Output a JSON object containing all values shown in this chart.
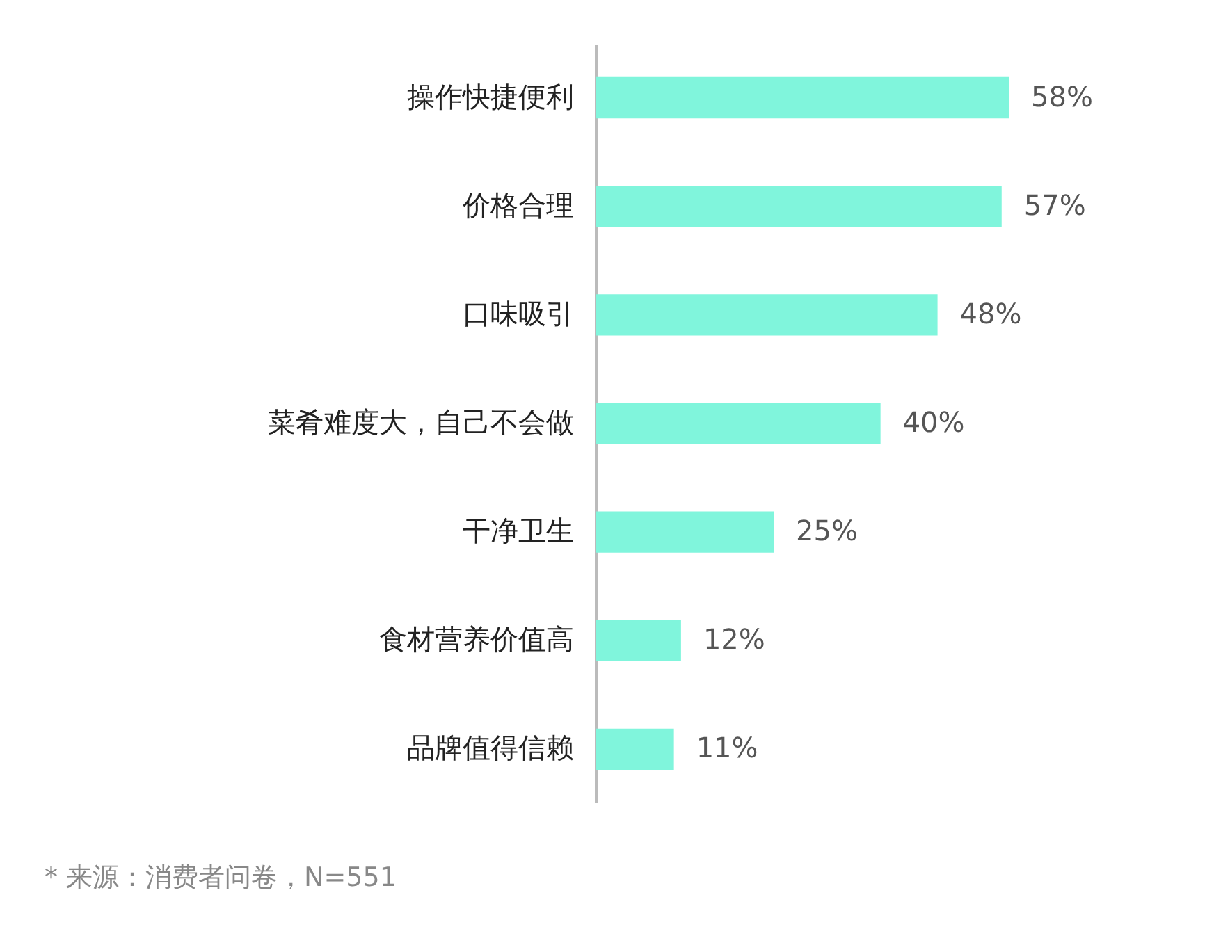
{
  "chart_data": {
    "type": "bar",
    "orientation": "horizontal",
    "categories": [
      "操作快捷便利",
      "价格合理",
      "口味吸引",
      "菜肴难度大，自己不会做",
      "干净卫生",
      "食材营养价值高",
      "品牌值得信赖"
    ],
    "values": [
      58,
      57,
      48,
      40,
      25,
      12,
      11
    ],
    "value_labels": [
      "58%",
      "57%",
      "48%",
      "40%",
      "25%",
      "12%",
      "11%"
    ],
    "color": "#80f5dc",
    "annotations": [
      "* 来源：消费者问卷，N=551"
    ]
  }
}
